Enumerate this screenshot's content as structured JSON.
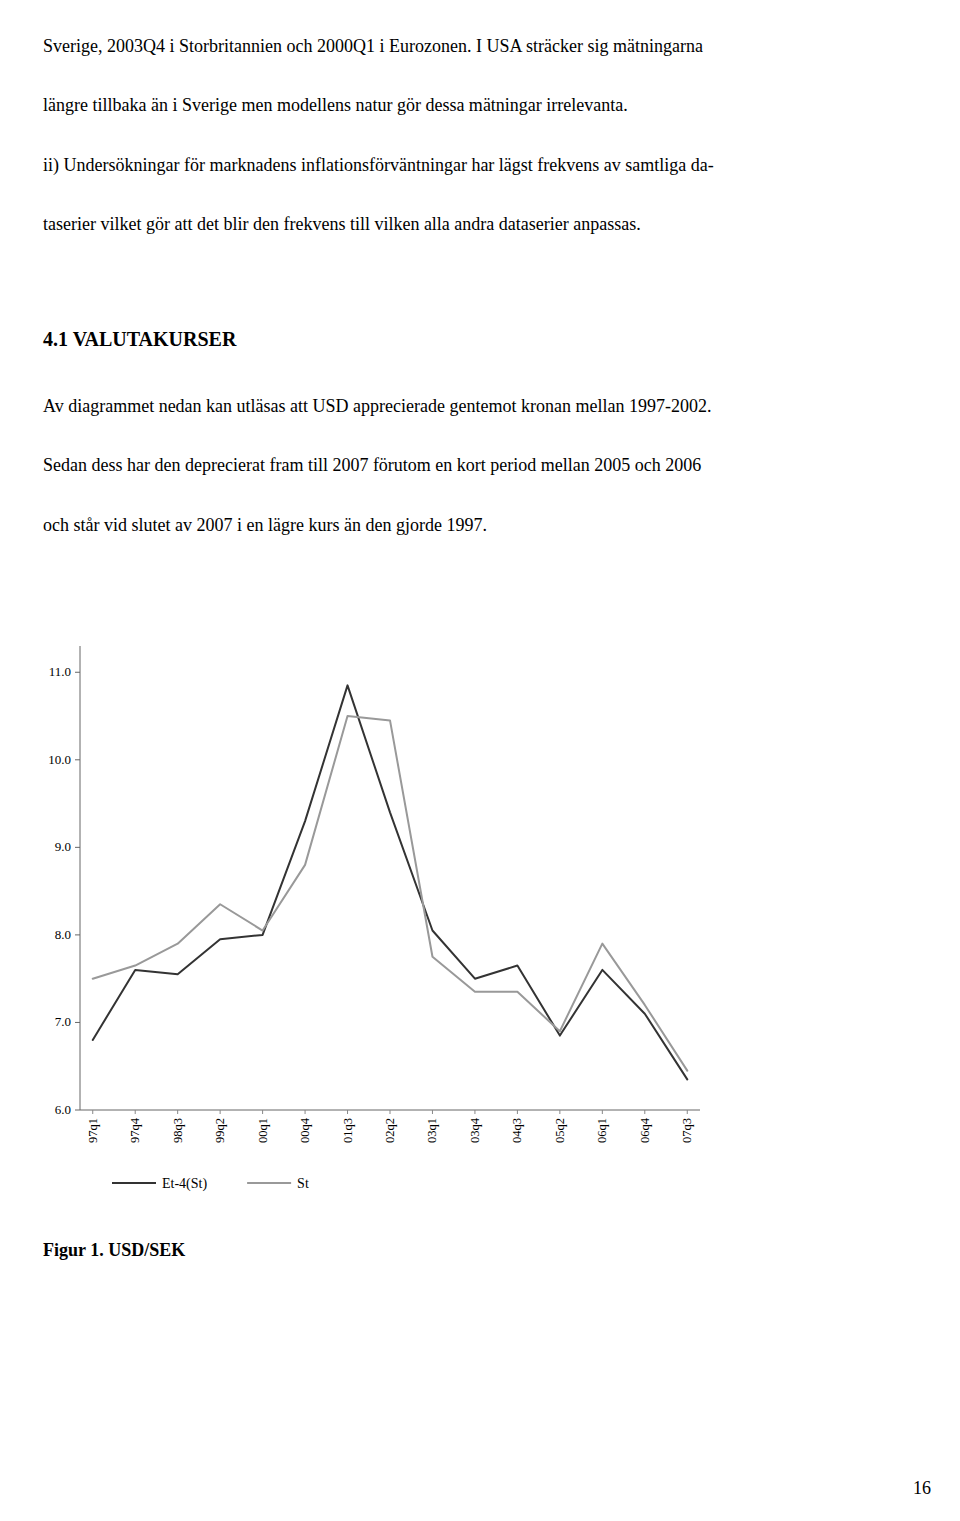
{
  "text_before": [
    [
      "Sverige, 2003Q4 i Storbritannien och 2000Q1 i Eurozonen. I USA sträcker sig mätningarna",
      "längre tillbaka än i Sverige men modellens natur gör dessa mätningar irrelevanta."
    ],
    [
      "ii) Undersökningar för marknadens inflationsförväntningar har lägst frekvens av samtliga da-",
      "taserier vilket gör att det blir den frekvens till vilken alla andra dataserier anpassas."
    ]
  ],
  "heading": "4.1 VALUTAKURSER",
  "text_after": [
    [
      "Av diagrammet nedan kan utläsas att USD apprecierade gentemot kronan mellan 1997-2002.",
      "Sedan dess har den deprecierat fram till 2007 förutom en kort period mellan 2005 och 2006",
      "och står vid slutet av 2007 i en lägre kurs än den gjorde 1997."
    ]
  ],
  "page_number": "16",
  "chart_data": {
    "type": "line",
    "title": "Figur 1. USD/SEK",
    "categories": [
      "97q1",
      "97q4",
      "98q3",
      "99q2",
      "00q1",
      "00q4",
      "01q3",
      "02q2",
      "03q1",
      "03q4",
      "04q3",
      "05q2",
      "06q1",
      "06q4",
      "07q3"
    ],
    "series": [
      {
        "name": "Et-4(St)",
        "color": "#333333",
        "values": [
          6.8,
          7.6,
          7.55,
          7.95,
          8.0,
          9.3,
          10.85,
          9.4,
          8.05,
          7.5,
          7.65,
          6.85,
          7.6,
          7.1,
          6.35
        ]
      },
      {
        "name": "St",
        "color": "#999999",
        "values": [
          7.5,
          7.65,
          7.9,
          8.35,
          8.05,
          8.8,
          10.5,
          10.45,
          7.75,
          7.35,
          7.35,
          6.9,
          7.9,
          7.2,
          6.45
        ]
      }
    ],
    "ylim": [
      6.0,
      11.3
    ],
    "yticks": [
      {
        "value": 6.0,
        "label": "6.0"
      },
      {
        "value": 7.0,
        "label": "7.0"
      },
      {
        "value": 8.0,
        "label": "8.0"
      },
      {
        "value": 9.0,
        "label": "9.0"
      },
      {
        "value": 10.0,
        "label": "10.0"
      },
      {
        "value": 11.0,
        "label": "11.0"
      }
    ],
    "grid": false,
    "legend": "bottom"
  }
}
